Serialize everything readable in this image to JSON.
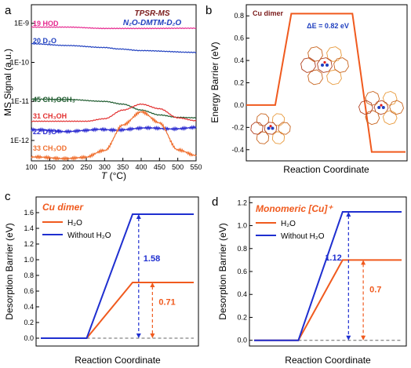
{
  "panels": {
    "a": {
      "letter": "a",
      "title": "TPSR-MS",
      "subtitle": "N₂O-DMTM-D₂O",
      "ylabel": "MS Signal (a.u.)",
      "xlabel_italic": "T",
      "xlabel_rest": " (°C)",
      "colors": {
        "hod": "#e6288f",
        "d2o": "#1f3fbf",
        "ch3och3": "#1e5a2e",
        "ch3oh": "#e23030",
        "d3o": "#2a2ad0",
        "ch3od": "#f07030"
      }
    },
    "b": {
      "letter": "b",
      "title": "Cu dimer",
      "delta_e": "ΔE = 0.82 eV",
      "ylabel": "Energy Barrier (eV)",
      "xlabel": "Reaction Coordinate",
      "color": "#f05a1e"
    },
    "c": {
      "letter": "c",
      "title": "Cu dimer",
      "ylabel": "Desorption Barrier (eV)",
      "xlabel": "Reaction Coordinate",
      "annot_blue": "1.58",
      "annot_red": "0.71"
    },
    "d": {
      "letter": "d",
      "title": "Monomeric [Cu]⁺",
      "ylabel": "Desorption Barrier (eV)",
      "xlabel": "Reaction Coordinate",
      "annot_blue": "1.12",
      "annot_red": "0.7"
    }
  },
  "chart_data": [
    {
      "type": "line",
      "panel": "a",
      "title": "TPSR-MS",
      "xlabel": "T (°C)",
      "ylabel": "MS Signal (a.u.)",
      "xlim": [
        100,
        550
      ],
      "ylim_log": [
        3e-13,
        3e-09
      ],
      "x_ticks": [
        100,
        150,
        200,
        250,
        300,
        350,
        400,
        450,
        500,
        550
      ],
      "y_ticks": [
        "1E-9",
        "1E-10",
        "1E-11",
        "1E-12"
      ],
      "series": [
        {
          "name": "19 HOD",
          "x": [
            100,
            200,
            300,
            400,
            550
          ],
          "y": [
            8e-10,
            8e-10,
            7.4e-10,
            7.4e-10,
            7.5e-10
          ]
        },
        {
          "name": "20 D₂O",
          "x": [
            100,
            200,
            300,
            340,
            400,
            550
          ],
          "y": [
            3e-10,
            2.7e-10,
            2.4e-10,
            2.2e-10,
            2e-10,
            1.8e-10
          ]
        },
        {
          "name": "45 CH₃OCH₃",
          "x": [
            100,
            200,
            300,
            350,
            400,
            450,
            500,
            550
          ],
          "y": [
            1.15e-11,
            1.12e-11,
            1e-11,
            8.5e-12,
            6e-12,
            4.5e-12,
            3.9e-12,
            3.8e-12
          ]
        },
        {
          "name": "31 CH₃OH",
          "x": [
            100,
            250,
            300,
            350,
            400,
            450,
            500,
            550
          ],
          "y": [
            3.1e-12,
            3.1e-12,
            3.6e-12,
            6e-12,
            8.5e-12,
            6.5e-12,
            3.8e-12,
            3.2e-12
          ]
        },
        {
          "name": "22 D₃O⁺",
          "x": [
            100,
            250,
            300,
            400,
            550
          ],
          "y": [
            1.8e-12,
            1.75e-12,
            1.9e-12,
            2e-12,
            2.1e-12
          ]
        },
        {
          "name": "33 CH₃OD",
          "x": [
            100,
            250,
            300,
            350,
            400,
            450,
            500,
            550
          ],
          "y": [
            3.6e-13,
            3.6e-13,
            5.5e-13,
            2.6e-12,
            5.2e-12,
            2.8e-12,
            6e-13,
            4e-13
          ]
        }
      ]
    },
    {
      "type": "line",
      "panel": "b",
      "title": "Cu dimer",
      "xlabel": "Reaction Coordinate",
      "ylabel": "Energy Barrier (eV)",
      "ylim": [
        -0.5,
        0.9
      ],
      "y_ticks": [
        -0.4,
        -0.2,
        0.0,
        0.2,
        0.4,
        0.6,
        0.8
      ],
      "series": [
        {
          "name": "Cu dimer",
          "x": [
            0.0,
            0.18,
            0.28,
            0.34,
            0.58,
            0.66,
            0.78,
            0.99
          ],
          "y": [
            0.0,
            0.0,
            0.82,
            0.82,
            0.82,
            0.82,
            -0.42,
            -0.42
          ]
        }
      ]
    },
    {
      "type": "line",
      "panel": "c",
      "title": "Cu dimer",
      "xlabel": "Reaction Coordinate",
      "ylabel": "Desorption Barrier (eV)",
      "ylim": [
        -0.1,
        1.8
      ],
      "y_ticks": [
        0.0,
        0.2,
        0.4,
        0.6,
        0.8,
        1.0,
        1.2,
        1.4,
        1.6
      ],
      "series": [
        {
          "name": "H₂O",
          "x": [
            0.0,
            0.3,
            0.6,
            1.0
          ],
          "y": [
            0.0,
            0.0,
            0.71,
            0.71
          ]
        },
        {
          "name": "Without H₂O",
          "x": [
            0.0,
            0.3,
            0.6,
            1.0
          ],
          "y": [
            0.0,
            0.0,
            1.58,
            1.58
          ]
        }
      ],
      "annotations": [
        {
          "text": "1.58",
          "value": 1.58
        },
        {
          "text": "0.71",
          "value": 0.71
        }
      ]
    },
    {
      "type": "line",
      "panel": "d",
      "title": "Monomeric [Cu]⁺",
      "xlabel": "Reaction Coordinate",
      "ylabel": "Desorption Barrier (eV)",
      "ylim": [
        -0.05,
        1.25
      ],
      "y_ticks": [
        0.0,
        0.2,
        0.4,
        0.6,
        0.8,
        1.0,
        1.2
      ],
      "series": [
        {
          "name": "H₂O",
          "x": [
            0.0,
            0.3,
            0.6,
            1.0
          ],
          "y": [
            0.0,
            0.0,
            0.7,
            0.7
          ]
        },
        {
          "name": "Without H₂O",
          "x": [
            0.0,
            0.3,
            0.6,
            1.0
          ],
          "y": [
            0.0,
            0.0,
            1.12,
            1.12
          ]
        }
      ],
      "annotations": [
        {
          "text": "1.12",
          "value": 1.12
        },
        {
          "text": "0.7",
          "value": 0.7
        }
      ]
    }
  ]
}
